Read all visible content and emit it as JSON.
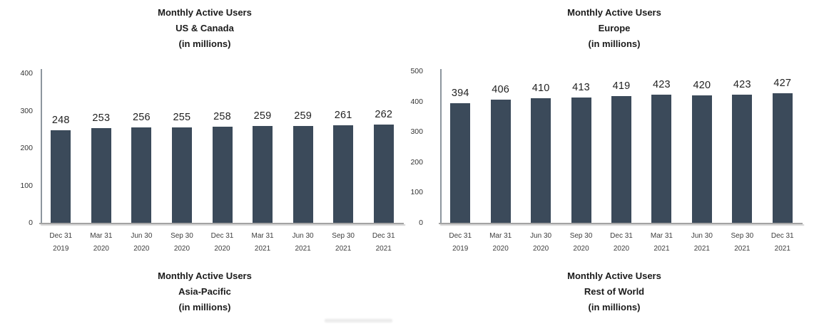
{
  "figure": {
    "description_colors": {
      "bar_color": "#3b4a5a",
      "axis_line_color": "#8d969e",
      "baseline_color": "#a3a3a3",
      "title_color": "#1b1b1b",
      "label_color": "#3d3d3d",
      "background": "#ffffff"
    }
  },
  "x_categories_lines": [
    [
      "Dec 31",
      "2019"
    ],
    [
      "Mar 31",
      "2020"
    ],
    [
      "Jun 30",
      "2020"
    ],
    [
      "Sep 30",
      "2020"
    ],
    [
      "Dec 31",
      "2020"
    ],
    [
      "Mar 31",
      "2021"
    ],
    [
      "Jun 30",
      "2021"
    ],
    [
      "Sep 30",
      "2021"
    ],
    [
      "Dec 31",
      "2021"
    ]
  ],
  "chart_data": [
    {
      "type": "bar",
      "title": "Monthly Active Users US & Canada (in millions)",
      "title_lines": [
        "Monthly Active Users",
        "US & Canada",
        "(in millions)"
      ],
      "categories": [
        "Dec 31 2019",
        "Mar 31 2020",
        "Jun 30 2020",
        "Sep 30 2020",
        "Dec 31 2020",
        "Mar 31 2021",
        "Jun 30 2021",
        "Sep 30 2021",
        "Dec 31 2021"
      ],
      "values": [
        248,
        253,
        256,
        255,
        258,
        259,
        259,
        261,
        262
      ],
      "data_labels_shown": true,
      "xlabel": "",
      "ylabel": "",
      "ylim": [
        0,
        400
      ],
      "yticks": [
        0,
        100,
        200,
        300,
        400
      ],
      "grid": false,
      "legend": false
    },
    {
      "type": "bar",
      "title": "Monthly Active Users Europe (in millions)",
      "title_lines": [
        "Monthly Active Users",
        "Europe",
        "(in millions)"
      ],
      "categories": [
        "Dec 31 2019",
        "Mar 31 2020",
        "Jun 30 2020",
        "Sep 30 2020",
        "Dec 31 2020",
        "Mar 31 2021",
        "Jun 30 2021",
        "Sep 30 2021",
        "Dec 31 2021"
      ],
      "values": [
        394,
        406,
        410,
        413,
        419,
        423,
        420,
        423,
        427
      ],
      "data_labels_shown": true,
      "xlabel": "",
      "ylabel": "",
      "ylim": [
        0,
        500
      ],
      "yticks": [
        0,
        100,
        200,
        300,
        400,
        500
      ],
      "grid": false,
      "legend": false
    },
    {
      "type": "bar",
      "title": "Monthly Active Users Asia-Pacific (in millions)",
      "title_lines": [
        "Monthly Active Users",
        "Asia-Pacific",
        "(in millions)"
      ],
      "cropped": true,
      "note": "only the title of this chart is visible; plot area is cut off at the bottom of the screenshot"
    },
    {
      "type": "bar",
      "title": "Monthly Active Users Rest of World (in millions)",
      "title_lines": [
        "Monthly Active Users",
        "Rest of World",
        "(in millions)"
      ],
      "cropped": true,
      "note": "only the title of this chart is visible; plot area is cut off at the bottom of the screenshot"
    }
  ]
}
